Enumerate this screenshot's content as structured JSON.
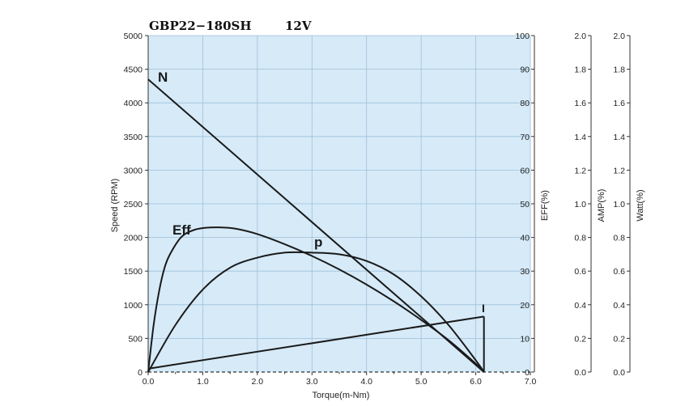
{
  "chart_data": {
    "type": "line",
    "title": "GBP22−180SH",
    "subtitle": "12V",
    "xlabel": "Torque(m-Nm)",
    "xlim": [
      0,
      7
    ],
    "x_ticks": [
      "0.0",
      "1.0",
      "2.0",
      "3.0",
      "4.0",
      "5.0",
      "6.0",
      "7.0"
    ],
    "grid": true,
    "background_color": "#d6eaf8",
    "axes": [
      {
        "id": "speed",
        "label": "Speed (RPM)",
        "ylim": [
          0,
          5000
        ],
        "ticks": [
          "0",
          "500",
          "1000",
          "1500",
          "2000",
          "2500",
          "3000",
          "3500",
          "4000",
          "4500",
          "5000"
        ]
      },
      {
        "id": "eff",
        "label": "EFF(%)",
        "ylim": [
          0,
          100
        ],
        "ticks": [
          "0",
          "10",
          "20",
          "30",
          "40",
          "50",
          "60",
          "70",
          "80",
          "90",
          "100"
        ]
      },
      {
        "id": "amp",
        "label": "AMP(%)",
        "ylim": [
          0,
          2.0
        ],
        "ticks": [
          "0.0",
          "0.2",
          "0.4",
          "0.6",
          "0.8",
          "1.0",
          "1.2",
          "1.4",
          "1.6",
          "1.8",
          "2.0"
        ]
      },
      {
        "id": "watt",
        "label": "Watt(%)",
        "ylim": [
          0,
          2.0
        ],
        "ticks": [
          "0.0",
          "0.2",
          "0.4",
          "0.6",
          "0.8",
          "1.0",
          "1.2",
          "1.4",
          "1.6",
          "1.8",
          "2.0"
        ]
      }
    ],
    "series": [
      {
        "name": "N",
        "axis": "speed",
        "x": [
          0,
          6.15
        ],
        "y": [
          4350,
          0
        ]
      },
      {
        "name": "Eff",
        "axis": "eff",
        "x": [
          0,
          0.1,
          0.2,
          0.3,
          0.4,
          0.6,
          0.8,
          1.0,
          1.3,
          1.6,
          2.0,
          2.5,
          3.0,
          3.5,
          4.0,
          4.5,
          5.0,
          5.5,
          6.0,
          6.15
        ],
        "y": [
          0,
          14,
          24,
          31,
          35,
          40,
          42,
          42.8,
          43,
          42.6,
          41,
          38,
          34.5,
          30.5,
          26,
          21,
          15.5,
          9.5,
          2.5,
          0
        ]
      },
      {
        "name": "p",
        "axis": "watt",
        "x": [
          0,
          0.5,
          1.0,
          1.5,
          2.0,
          2.5,
          3.0,
          3.5,
          4.0,
          4.5,
          5.0,
          5.5,
          6.0,
          6.15
        ],
        "y": [
          0,
          0.28,
          0.49,
          0.62,
          0.68,
          0.71,
          0.71,
          0.7,
          0.66,
          0.58,
          0.45,
          0.28,
          0.07,
          0
        ]
      },
      {
        "name": "I",
        "axis": "amp",
        "x": [
          0,
          6.15
        ],
        "y": [
          0.02,
          0.33
        ]
      }
    ]
  }
}
